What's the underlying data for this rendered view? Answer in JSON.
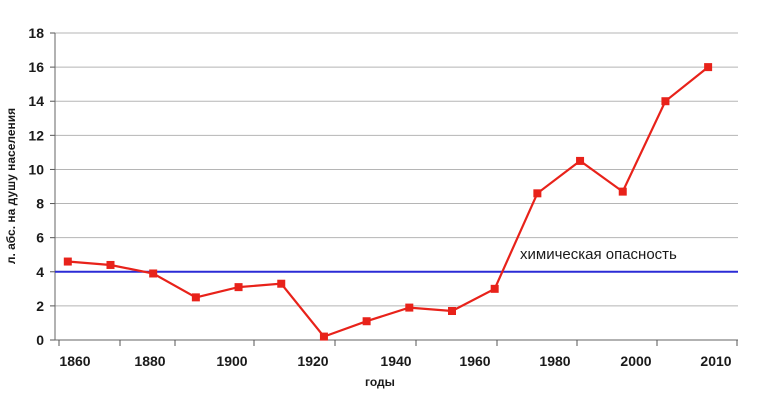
{
  "chart_data": {
    "type": "line",
    "xlabel": "годы",
    "ylabel": "л. абс. на душу населения",
    "xlim": [
      1855,
      2015
    ],
    "ylim": [
      0,
      18
    ],
    "x_ticks": [
      1860,
      1880,
      1900,
      1920,
      1940,
      1960,
      1980,
      2000,
      2010
    ],
    "x_tick_labels": [
      "1860",
      "1880",
      "1900",
      "1920",
      "1940",
      "1960",
      "1980",
      "2000",
      "2010"
    ],
    "y_ticks": [
      0,
      2,
      4,
      6,
      8,
      10,
      12,
      14,
      16,
      18
    ],
    "y_tick_labels": [
      "0",
      "2",
      "4",
      "6",
      "8",
      "10",
      "12",
      "14",
      "16",
      "18"
    ],
    "grid": "horizontal",
    "series": [
      {
        "color": "#e8221a",
        "marker": "square",
        "points": [
          {
            "x": 1858,
            "y": 4.6
          },
          {
            "x": 1868,
            "y": 4.4
          },
          {
            "x": 1878,
            "y": 3.9
          },
          {
            "x": 1888,
            "y": 2.5
          },
          {
            "x": 1898,
            "y": 3.1
          },
          {
            "x": 1908,
            "y": 3.3
          },
          {
            "x": 1918,
            "y": 0.2
          },
          {
            "x": 1928,
            "y": 1.1
          },
          {
            "x": 1938,
            "y": 1.9
          },
          {
            "x": 1948,
            "y": 1.7
          },
          {
            "x": 1958,
            "y": 3.0
          },
          {
            "x": 1968,
            "y": 8.6
          },
          {
            "x": 1978,
            "y": 10.5
          },
          {
            "x": 1988,
            "y": 8.7
          },
          {
            "x": 1998,
            "y": 14.0
          },
          {
            "x": 2008,
            "y": 16.0
          }
        ]
      }
    ],
    "reference_line": {
      "y": 4,
      "color": "#2b2bd6",
      "label": "химическая опасность"
    }
  }
}
